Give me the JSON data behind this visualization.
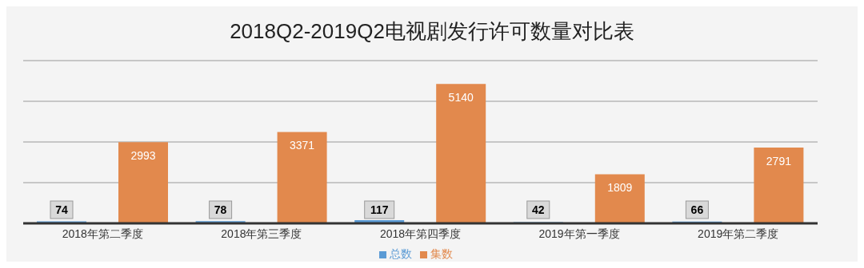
{
  "chart_data": {
    "type": "bar",
    "title": "2018Q2-2019Q2电视剧发行许可数量对比表",
    "categories": [
      "2018年第二季度",
      "2018年第三季度",
      "2018年第四季度",
      "2019年第一季度",
      "2019年第二季度"
    ],
    "series": [
      {
        "name": "总数",
        "color": "#5b9bd5",
        "values": [
          74,
          78,
          117,
          42,
          66
        ]
      },
      {
        "name": "集数",
        "color": "#e2894d",
        "values": [
          2993,
          3371,
          5140,
          1809,
          2791
        ]
      }
    ],
    "tick_labels": "x",
    "grid": "y",
    "legend": "bottom",
    "data_labels": true
  }
}
